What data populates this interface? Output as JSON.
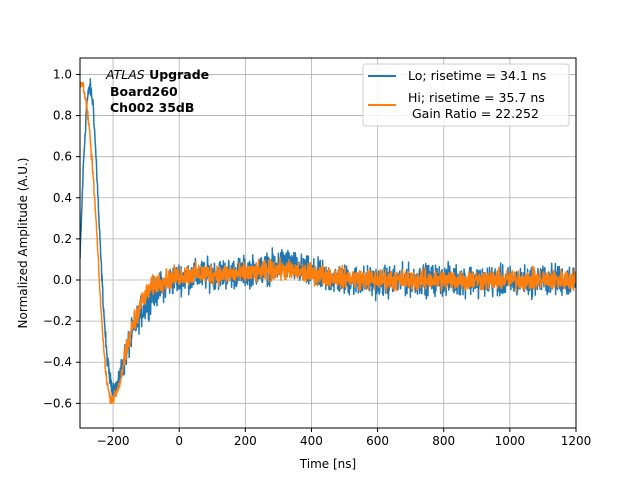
{
  "chart_data": {
    "type": "line",
    "title": "",
    "xlabel": "Time [ns]",
    "ylabel": "Normalized Amplitude (A.U.)",
    "xlim": [
      -300,
      1200
    ],
    "ylim": [
      -0.72,
      1.08
    ],
    "xticks": [
      -200,
      0,
      200,
      400,
      600,
      800,
      1000,
      1200
    ],
    "yticks": [
      -0.6,
      -0.4,
      -0.2,
      0.0,
      0.2,
      0.4,
      0.6,
      0.8,
      1.0
    ],
    "xtick_labels": [
      "−200",
      "0",
      "200",
      "400",
      "600",
      "800",
      "1000",
      "1200"
    ],
    "ytick_labels": [
      "−0.6",
      "−0.4",
      "−0.2",
      "0.0",
      "0.2",
      "0.4",
      "0.6",
      "0.8",
      "1.0"
    ],
    "grid": true,
    "legend_position": "top-right",
    "legend_extra_line": " Gain Ratio = 22.252",
    "annotation": {
      "line1_italic": "ATLAS",
      "line1_bold": " Upgrade",
      "line2": "Board260",
      "line3": "Ch002 35dB"
    },
    "series": [
      {
        "name": "Lo; risetime = 34.1 ns",
        "color": "#1f77b4",
        "noise": 0.045,
        "x": [
          -300,
          -290,
          -280,
          -270,
          -260,
          -250,
          -240,
          -230,
          -220,
          -210,
          -200,
          -190,
          -180,
          -170,
          -160,
          -140,
          -120,
          -100,
          -80,
          -60,
          -40,
          -20,
          0,
          50,
          100,
          150,
          200,
          250,
          300,
          320,
          350,
          400,
          450,
          500,
          600,
          700,
          800,
          900,
          1000,
          1100,
          1200
        ],
        "y": [
          0.1,
          0.55,
          0.85,
          0.95,
          0.85,
          0.55,
          0.2,
          -0.1,
          -0.35,
          -0.48,
          -0.53,
          -0.52,
          -0.48,
          -0.42,
          -0.35,
          -0.25,
          -0.17,
          -0.12,
          -0.07,
          -0.04,
          -0.02,
          0.0,
          0.01,
          0.02,
          0.03,
          0.03,
          0.04,
          0.05,
          0.07,
          0.09,
          0.06,
          0.03,
          0.01,
          0.0,
          -0.01,
          0.0,
          0.0,
          0.0,
          -0.01,
          0.0,
          0.0
        ]
      },
      {
        "name": "Hi; risetime = 35.7 ns",
        "color": "#ff7f0e",
        "noise": 0.03,
        "x": [
          -300,
          -290,
          -280,
          -270,
          -260,
          -250,
          -240,
          -230,
          -220,
          -210,
          -200,
          -190,
          -180,
          -170,
          -160,
          -140,
          -120,
          -100,
          -80,
          -60,
          -40,
          -20,
          0,
          50,
          100,
          150,
          200,
          250,
          300,
          350,
          400,
          450,
          500,
          600,
          700,
          800,
          900,
          1000,
          1100,
          1200
        ],
        "y": [
          0.95,
          0.95,
          0.85,
          0.7,
          0.5,
          0.25,
          -0.05,
          -0.3,
          -0.48,
          -0.57,
          -0.58,
          -0.55,
          -0.5,
          -0.42,
          -0.35,
          -0.22,
          -0.13,
          -0.07,
          -0.03,
          -0.01,
          0.0,
          0.01,
          0.02,
          0.03,
          0.03,
          0.03,
          0.03,
          0.04,
          0.05,
          0.04,
          0.03,
          0.02,
          0.01,
          0.0,
          0.0,
          0.0,
          0.0,
          0.0,
          0.0,
          0.0
        ]
      }
    ]
  }
}
